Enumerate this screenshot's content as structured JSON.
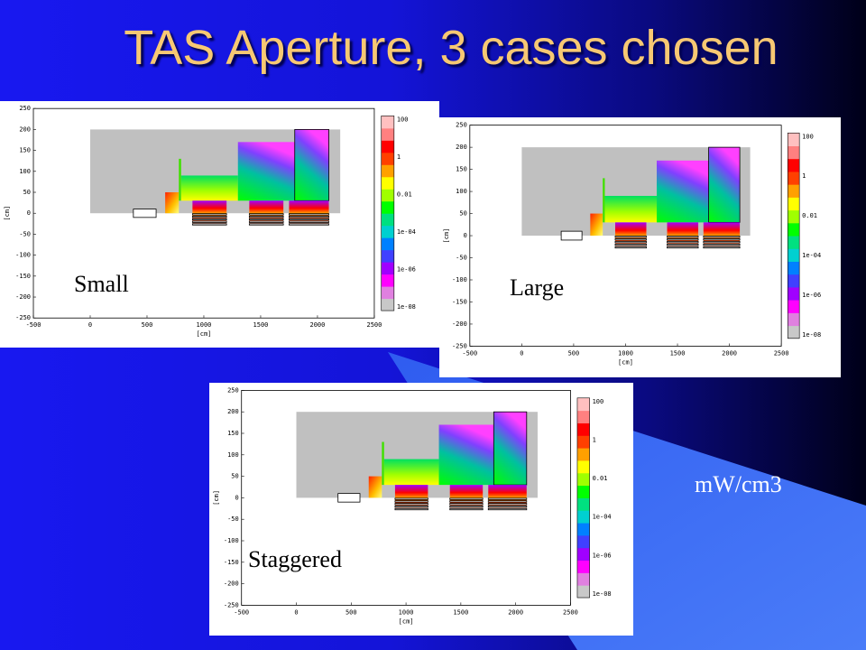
{
  "header": {
    "title": "TAS Aperture, 3 cases chosen"
  },
  "unit_note": "mW/cm3",
  "plots": [
    {
      "caption": "Small",
      "x_label": "[cm]",
      "y_label": "[cm]",
      "xticks": [
        -500,
        0,
        500,
        1000,
        1500,
        2000,
        2500
      ],
      "yticks": [
        250,
        200,
        150,
        100,
        50,
        0,
        -50,
        -100,
        -150,
        -200,
        -250
      ],
      "colorbar_ticks": [
        "100",
        "1",
        "0.01",
        "1e-04",
        "1e-06",
        "1e-08"
      ]
    },
    {
      "caption": "Large",
      "x_label": "[cm]",
      "y_label": "[cm]",
      "xticks": [
        -500,
        0,
        500,
        1000,
        1500,
        2000,
        2500
      ],
      "yticks": [
        250,
        200,
        150,
        100,
        50,
        0,
        -50,
        -100,
        -150,
        -200,
        -250
      ],
      "colorbar_ticks": [
        "100",
        "1",
        "0.01",
        "1e-04",
        "1e-06",
        "1e-08"
      ]
    },
    {
      "caption": "Staggered",
      "x_label": "[cm]",
      "y_label": "[cm]",
      "xticks": [
        -500,
        0,
        500,
        1000,
        1500,
        2000,
        2500
      ],
      "yticks": [
        250,
        200,
        150,
        100,
        50,
        0,
        -50,
        -100,
        -150,
        -200,
        -250
      ],
      "colorbar_ticks": [
        "100",
        "1",
        "0.01",
        "1e-04",
        "1e-06",
        "1e-08"
      ]
    }
  ]
}
